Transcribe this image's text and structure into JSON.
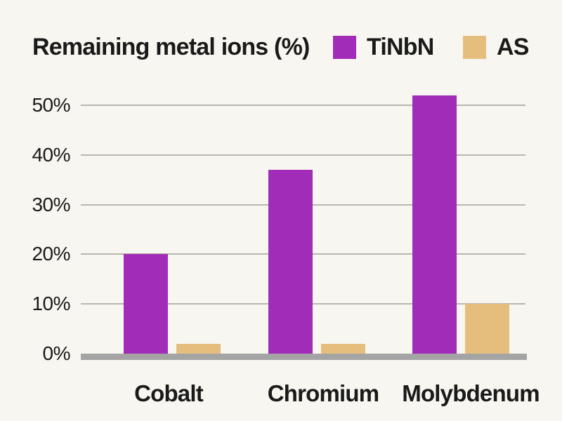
{
  "page": {
    "background": "#f8f6f0",
    "text_color": "#1a1a1a"
  },
  "chart_data": {
    "type": "bar",
    "title": "Remaining metal ions (%)",
    "categories": [
      "Cobalt",
      "Chromium",
      "Molybdenum"
    ],
    "series": [
      {
        "name": "TiNbN",
        "color": "#a12cb8",
        "values": [
          20,
          37,
          52
        ]
      },
      {
        "name": "AS",
        "color": "#e5be7d",
        "values": [
          2,
          2,
          10
        ]
      }
    ],
    "xlabel": "",
    "ylabel": "",
    "ylim": [
      0,
      55
    ],
    "yticks": [
      {
        "value": 0,
        "label": "0%"
      },
      {
        "value": 10,
        "label": "10%"
      },
      {
        "value": 20,
        "label": "20%"
      },
      {
        "value": 30,
        "label": "30%"
      },
      {
        "value": 40,
        "label": "40%"
      },
      {
        "value": 50,
        "label": "50%"
      }
    ],
    "grid": true,
    "legend_position": "top-right",
    "axis_colors": {
      "gridline": "#b9b6b0",
      "baseline": "#a4a4a4"
    }
  }
}
